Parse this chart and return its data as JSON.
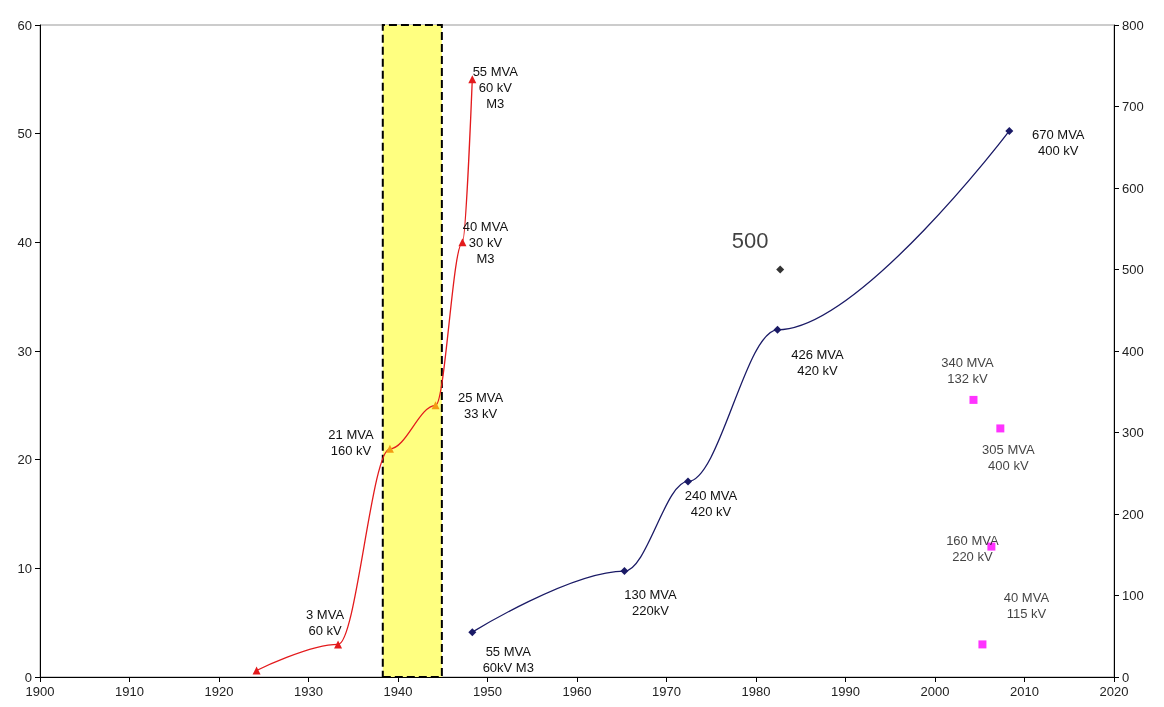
{
  "chart_data": {
    "type": "line",
    "xlim": [
      1900,
      2020
    ],
    "xticks": [
      1900,
      1910,
      1920,
      1930,
      1940,
      1950,
      1960,
      1970,
      1980,
      1990,
      2000,
      2010,
      2020
    ],
    "ylim": [
      0,
      60
    ],
    "yticks": [
      0,
      10,
      20,
      30,
      40,
      50,
      60
    ],
    "y2lim": [
      0,
      800
    ],
    "y2ticks": [
      0,
      100,
      200,
      300,
      400,
      500,
      600,
      700,
      800
    ],
    "grid": false,
    "bands": [
      {
        "axis": "x",
        "from": 1938.3,
        "to": 1944.9,
        "color": "#ffff80"
      }
    ],
    "series": [
      {
        "axis": "y",
        "marker": "triangle",
        "color": "#e31a1c",
        "colors": [
          "#e31a1c",
          "#e31a1c",
          "#f39c12",
          "#f39c12",
          "#e31a1c",
          "#e31a1c"
        ],
        "x": [
          1924.2,
          1933.3,
          1939.1,
          1944.2,
          1947.2,
          1948.3
        ],
        "values": [
          0.6,
          3,
          21,
          25,
          40,
          55
        ],
        "value_labels": [
          null,
          "3 MVA\n60 kV",
          "21 MVA\n160 kV",
          "25 MVA\n33 kV",
          "40 MVA\n30 kV\nM3",
          "55 MVA\n60 kV\nM3"
        ]
      },
      {
        "axis": "y2",
        "marker": "diamond",
        "color": "#1a1a66",
        "x": [
          1948.3,
          1965.3,
          1972.4,
          1982.4,
          2008.3
        ],
        "values": [
          55,
          130,
          240,
          426,
          670
        ],
        "value_labels": [
          "55 MVA\n60kV M3",
          "130 MVA\n220kV",
          "240 MVA\n420 kV",
          "426 MVA\n420 kV",
          "670 MVA\n400 kV"
        ]
      },
      {
        "type": "scatter",
        "axis": "y2",
        "marker": "diamond",
        "color": "#000000",
        "x": [
          1982.7
        ],
        "values": [
          500
        ],
        "value_labels": [
          "500"
        ]
      },
      {
        "type": "scatter",
        "axis": "y2",
        "marker": "square",
        "color": "#ff00ff",
        "x": [
          2004.3,
          2007.3,
          2006.3,
          2005.3
        ],
        "values": [
          340,
          305,
          160,
          40
        ],
        "value_labels": [
          "340 MVA\n132 kV",
          "305 MVA\n400 kV",
          "160 MVA\n220 kV",
          "40 MVA\n115 kV"
        ]
      }
    ]
  }
}
